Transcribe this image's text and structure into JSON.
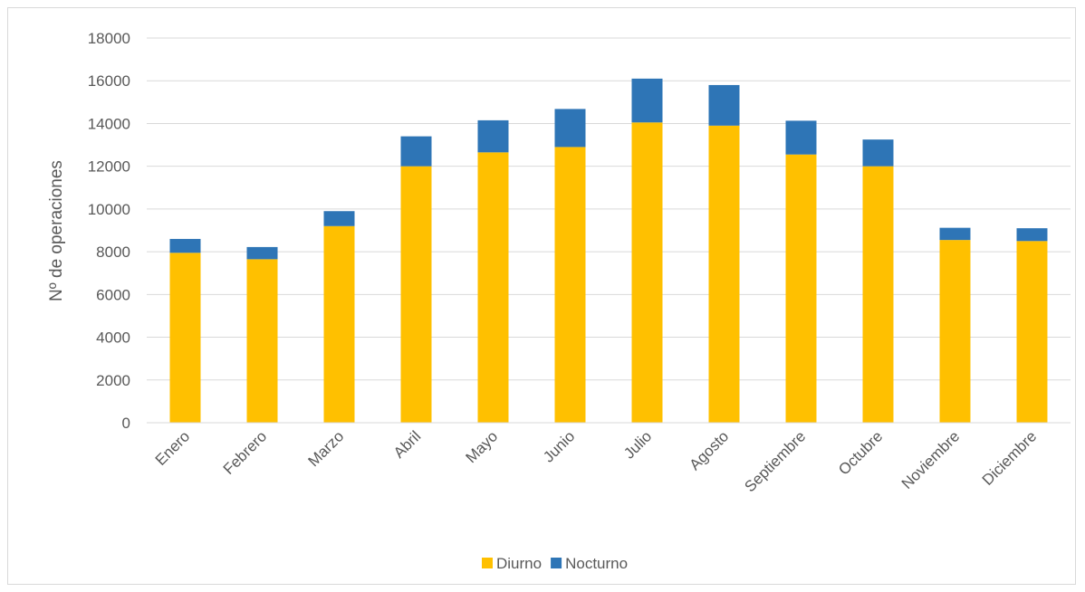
{
  "chart_data": {
    "type": "bar",
    "stacked": true,
    "ylabel": "Nº de operaciones",
    "xlabel": "",
    "ylim": [
      0,
      18000
    ],
    "yticks": [
      "0",
      "2000",
      "4000",
      "6000",
      "8000",
      "10000",
      "12000",
      "14000",
      "16000",
      "18000"
    ],
    "grid": true,
    "legend_position": "bottom",
    "categories": [
      "Enero",
      "Febrero",
      "Marzo",
      "Abril",
      "Mayo",
      "Junio",
      "Julio",
      "Agosto",
      "Septiembre",
      "Octubre",
      "Noviembre",
      "Diciembre"
    ],
    "series": [
      {
        "name": "Diurno",
        "color": "#FFC000",
        "values": [
          7950,
          7650,
          9200,
          12000,
          12650,
          12900,
          14050,
          13900,
          12550,
          12000,
          8550,
          8500
        ]
      },
      {
        "name": "Nocturno",
        "color": "#2E75B6",
        "values": [
          650,
          570,
          700,
          1400,
          1500,
          1780,
          2050,
          1900,
          1580,
          1250,
          570,
          600
        ]
      }
    ]
  }
}
